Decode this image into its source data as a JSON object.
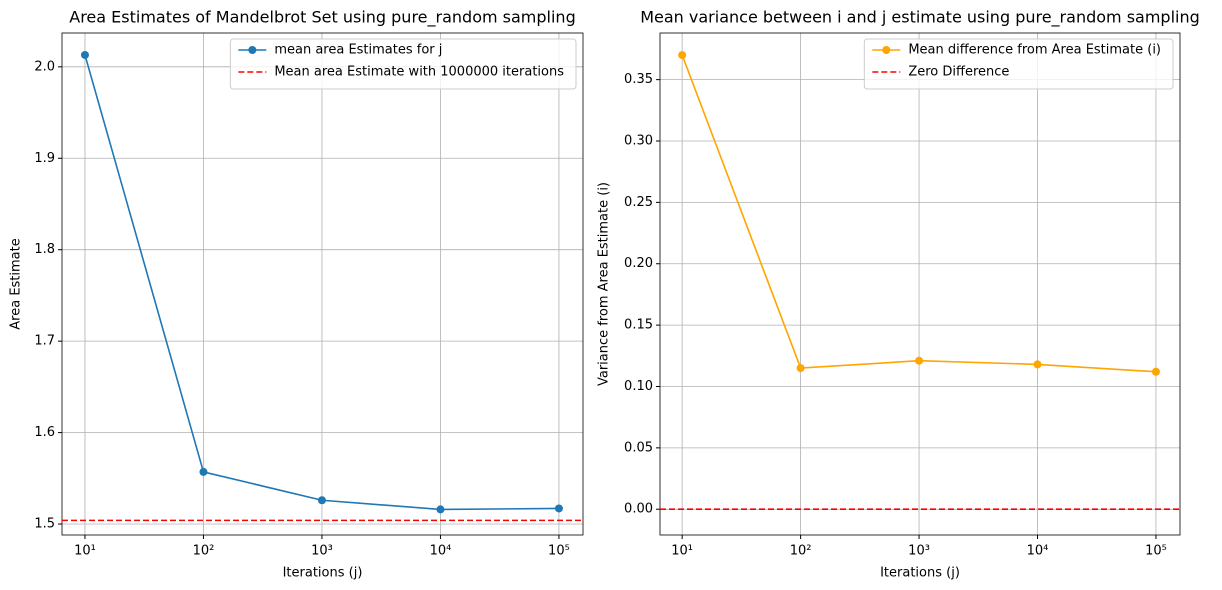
{
  "chart_data": [
    {
      "type": "line",
      "title": "Area Estimates of Mandelbrot Set using pure_random sampling",
      "x_label": "Iterations (j)",
      "y_label": "Area Estimate",
      "x": [
        10,
        100,
        1000,
        10000,
        100000
      ],
      "xscale": "log",
      "xlim": [
        6.4,
        159600
      ],
      "xticks": [
        {
          "value": 10,
          "label": "10¹"
        },
        {
          "value": 100,
          "label": "10²"
        },
        {
          "value": 1000,
          "label": "10³"
        },
        {
          "value": 10000,
          "label": "10⁴"
        },
        {
          "value": 100000,
          "label": "10⁵"
        }
      ],
      "ylim": [
        1.488,
        2.037
      ],
      "yticks": [
        {
          "value": 1.5,
          "label": "1.5"
        },
        1.6,
        1.7,
        1.8,
        1.9,
        {
          "value": 2.0,
          "label": "2.0"
        }
      ],
      "grid": true,
      "legend": "upper right",
      "series": [
        {
          "name": "mean area Estimates for j",
          "color": "#1f77b4",
          "values": [
            2.013,
            1.557,
            1.526,
            1.516,
            1.517
          ]
        }
      ],
      "hlines": [
        {
          "name": " Mean area Estimate with 1000000 iterations",
          "color": "#ff0000",
          "value": 1.504
        }
      ]
    },
    {
      "type": "line",
      "title": "Mean variance between i and j estimate using pure_random sampling",
      "x_label": "Iterations (j)",
      "y_label": "Variance from Area Estimate (i)",
      "x": [
        10,
        100,
        1000,
        10000,
        100000
      ],
      "xscale": "log",
      "xlim": [
        6.5,
        159600
      ],
      "xticks": [
        {
          "value": 10,
          "label": "10¹"
        },
        {
          "value": 100,
          "label": "10²"
        },
        {
          "value": 1000,
          "label": "10³"
        },
        {
          "value": 10000,
          "label": "10⁴"
        },
        {
          "value": 100000,
          "label": "10⁵"
        }
      ],
      "ylim": [
        -0.021,
        0.388
      ],
      "yticks": [
        {
          "value": 0,
          "label": "0.00"
        },
        {
          "value": 0.05,
          "label": "0.05"
        },
        {
          "value": 0.1,
          "label": "0.10"
        },
        {
          "value": 0.15,
          "label": "0.15"
        },
        {
          "value": 0.2,
          "label": "0.20"
        },
        {
          "value": 0.25,
          "label": "0.25"
        },
        {
          "value": 0.3,
          "label": "0.30"
        },
        {
          "value": 0.35,
          "label": "0.35"
        }
      ],
      "grid": true,
      "legend": "upper right",
      "series": [
        {
          "name": "Mean difference from Area Estimate (i)",
          "color": "#ffa500",
          "values": [
            0.37,
            0.115,
            0.121,
            0.118,
            0.112
          ]
        }
      ],
      "hlines": [
        {
          "name": "Zero Difference",
          "color": "#ff0000",
          "value": 0
        }
      ]
    }
  ]
}
